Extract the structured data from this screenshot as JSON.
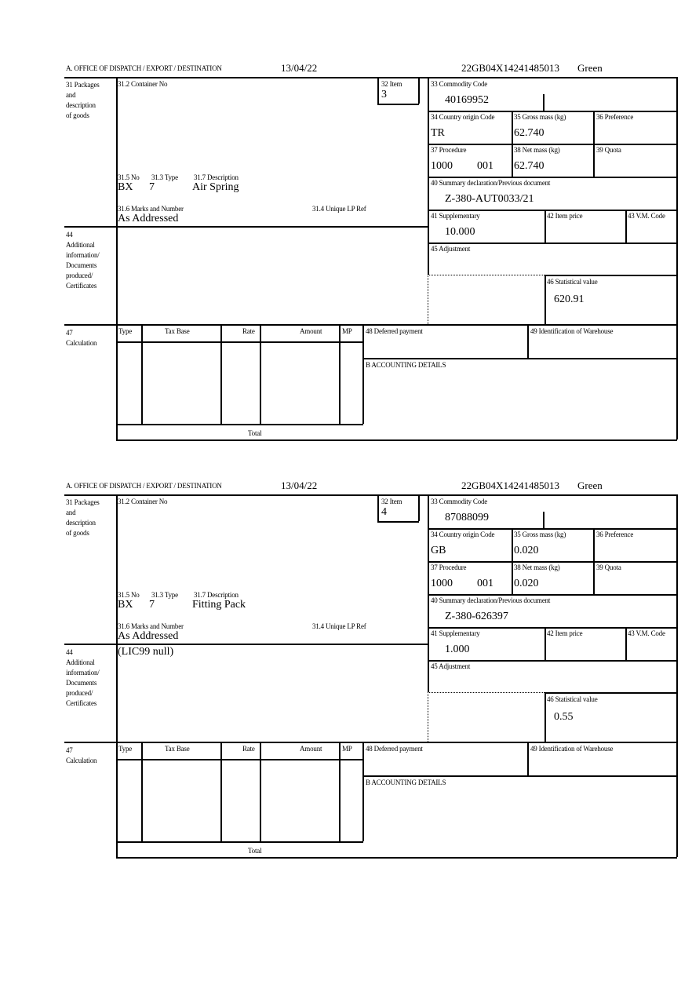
{
  "labels": {
    "office": "A.  OFFICE OF DISPATCH / EXPORT / DESTINATION",
    "box31": "31 Packages\nand\ndescription\nof goods",
    "container_no": "31.2 Container No",
    "item": "32 Item",
    "commodity_code": "33 Commodity Code",
    "country_origin": "34 Country origin Code",
    "gross_mass": "35 Gross mass (kg)",
    "preference": "36 Preference",
    "procedure": "37 Procedure",
    "net_mass": "38 Net mass (kg)",
    "quota": "39 Quota",
    "summary_declaration": "40 Summary declaration/Previous document",
    "supplementary": "41 Supplementary",
    "item_price": "42 Item price",
    "vm_code": "43 V.M. Code",
    "adjustment": "45 Adjustment",
    "statistical_value": "46 Statistical value",
    "package_no": "31.5 No",
    "package_type": "31.3 Type",
    "description": "31.7 Description",
    "marks": "31.6 Marks and Number",
    "unique_lp_ref": "31.4 Unique LP Ref",
    "box44": "44\nAdditional\ninformation/\nDocuments\nproduced/\nCertificates",
    "box47": "47\nCalculation",
    "col_type": "Type",
    "col_tax_base": "Tax Base",
    "col_rate": "Rate",
    "col_amount": "Amount",
    "col_mp": "MP",
    "deferred_payment": "48 Deferred payment",
    "warehouse": "49 Identification of Warehouse",
    "accounting": "B ACCOUNTING DETAILS",
    "total": "Total"
  },
  "blocks": [
    {
      "header": {
        "date": "13/04/22",
        "reference": "22GB04X14241485013",
        "status": "Green"
      },
      "fields": {
        "item": "3",
        "commodity_code": "40169952",
        "country_origin": "TR",
        "gross_mass": "62.740",
        "procedure": "1000",
        "procedure_extra": "001",
        "net_mass": "62.740",
        "summary_declaration": "Z-380-AUT0033/21",
        "supplementary": "10.000",
        "statistical_value": "620.91",
        "package_no": "BX",
        "package_type": "7",
        "description": "Air Spring",
        "marks": "As Addressed",
        "additional_info": ""
      }
    },
    {
      "header": {
        "date": "13/04/22",
        "reference": "22GB04X14241485013",
        "status": "Green"
      },
      "fields": {
        "item": "4",
        "commodity_code": "87088099",
        "country_origin": "GB",
        "gross_mass": "0.020",
        "procedure": "1000",
        "procedure_extra": "001",
        "net_mass": "0.020",
        "summary_declaration": "Z-380-626397",
        "supplementary": "1.000",
        "statistical_value": "0.55",
        "package_no": "BX",
        "package_type": "7",
        "description": "Fitting Pack",
        "marks": "As Addressed",
        "additional_info": "(LIC99 null)"
      }
    }
  ]
}
